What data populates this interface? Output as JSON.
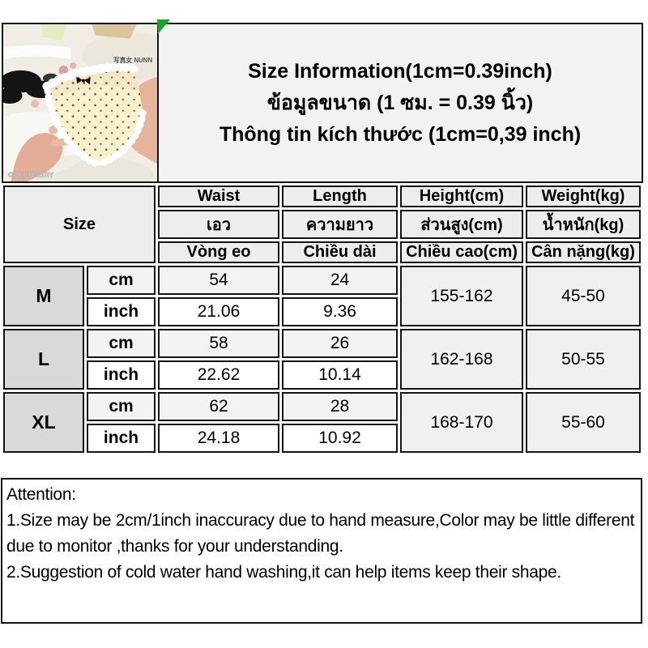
{
  "title": {
    "line_en": "Size Information(1cm=0.39inch)",
    "line_th": "ข้อมูลขนาด (1 ซม. = 0.39 นิ้ว)",
    "line_vi": "Thông tin kích thước (1cm=0,39 inch)"
  },
  "photo": {
    "description": "cream lace polka-dot panties held by two hands on white bedding",
    "watermark_top": "写真女 NUNN",
    "watermark_bottom": "GAKSUNBRY"
  },
  "table": {
    "size_label": "Size",
    "unit_cm": "cm",
    "unit_inch": "inch",
    "headers": {
      "en": [
        "Waist",
        "Length",
        "Height(cm)",
        "Weight(kg)"
      ],
      "th": [
        "เอว",
        "ความยาว",
        "ส่วนสูง(cm)",
        "น้ำหนัก(kg)"
      ],
      "vi": [
        "Vòng eo",
        "Chiều dài",
        "Chiều cao(cm)",
        "Cân nặng(kg)"
      ]
    },
    "rows": [
      {
        "size": "M",
        "cm": {
          "waist": "54",
          "length": "24"
        },
        "inch": {
          "waist": "21.06",
          "length": "9.36"
        },
        "height": "155-162",
        "weight": "45-50"
      },
      {
        "size": "L",
        "cm": {
          "waist": "58",
          "length": "26"
        },
        "inch": {
          "waist": "22.62",
          "length": "10.14"
        },
        "height": "162-168",
        "weight": "50-55"
      },
      {
        "size": "XL",
        "cm": {
          "waist": "62",
          "length": "28"
        },
        "inch": {
          "waist": "24.18",
          "length": "10.92"
        },
        "height": "168-170",
        "weight": "55-60"
      }
    ]
  },
  "attention": {
    "heading": "Attention:",
    "note1": "1.Size may be 2cm/1inch inaccuracy due to hand measure,Color may be little different due to monitor ,thanks for your understanding.",
    "note2": "2.Suggestion of cold water hand washing,it can help items keep their shape."
  },
  "colors": {
    "border": "#151515",
    "corner_marker_green": "#1aa12f",
    "header_box_bg": "#f2f2f2",
    "size_cell_bg": "#d9d9d9",
    "header_cell_bg": "#ededed",
    "cm_row_bg": "#f3f3f3",
    "inch_row_bg": "#ffffff",
    "range_cell_bg": "#f0f0f0"
  }
}
